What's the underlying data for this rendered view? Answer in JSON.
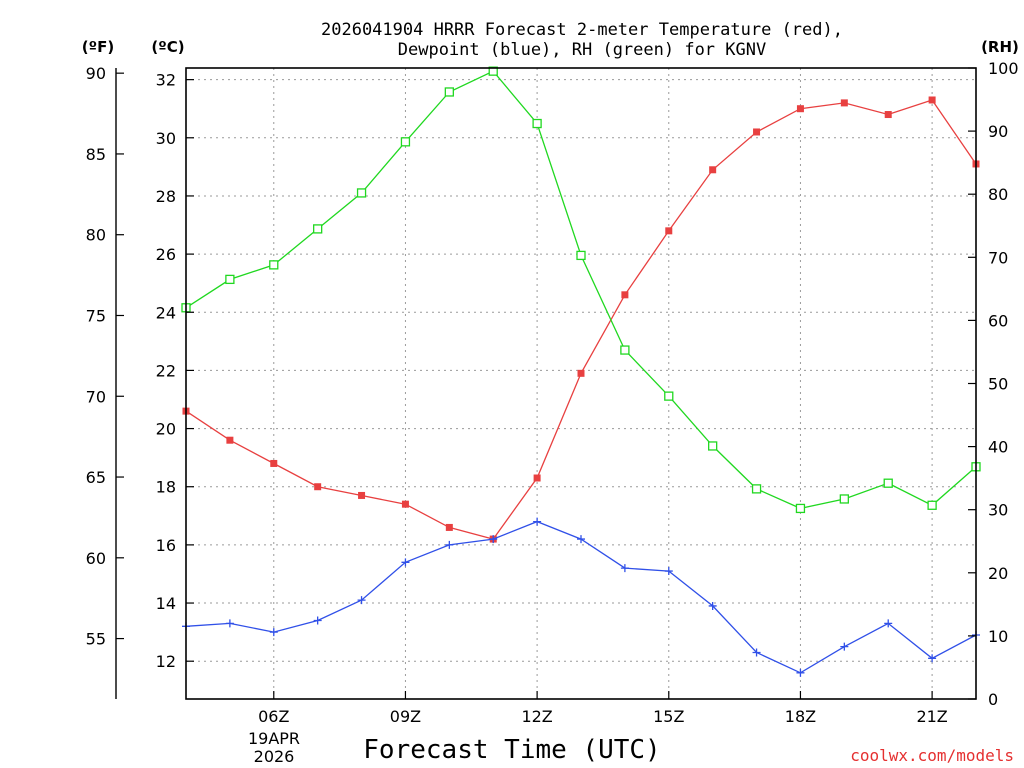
{
  "chart_data": {
    "type": "line",
    "title_line1": "2026041904 HRRR Forecast 2-meter Temperature (red),",
    "title_line2": "Dewpoint (blue), RH (green) for KGNV",
    "xlabel": "Forecast Time (UTC)",
    "watermark": "coolwx.com/models",
    "unit_f": "(ºF)",
    "unit_c": "(ºC)",
    "unit_rh": "(RH)",
    "date_line1": "19APR",
    "date_line2": "2026",
    "x_hours": [
      4,
      5,
      6,
      7,
      8,
      9,
      10,
      11,
      12,
      13,
      14,
      15,
      16,
      17,
      18,
      19,
      20,
      21,
      22
    ],
    "x_range": [
      4,
      22
    ],
    "x_ticks": [
      {
        "hour": 6,
        "label": "06Z"
      },
      {
        "hour": 9,
        "label": "09Z"
      },
      {
        "hour": 12,
        "label": "12Z"
      },
      {
        "hour": 15,
        "label": "15Z"
      },
      {
        "hour": 18,
        "label": "18Z"
      },
      {
        "hour": 21,
        "label": "21Z"
      }
    ],
    "c_range": [
      10.7,
      32.4
    ],
    "c_ticks": [
      "12",
      "14",
      "16",
      "18",
      "20",
      "22",
      "24",
      "26",
      "28",
      "30",
      "32"
    ],
    "f_range": [
      51.26,
      90.32
    ],
    "f_ticks": [
      "55",
      "60",
      "65",
      "70",
      "75",
      "80",
      "85",
      "90"
    ],
    "rh_range": [
      0,
      100
    ],
    "rh_ticks": [
      "0",
      "10",
      "20",
      "30",
      "40",
      "50",
      "60",
      "70",
      "80",
      "90",
      "100"
    ],
    "series": [
      {
        "name": "Temperature",
        "axis": "c",
        "color": "#e84040",
        "marker": "filled-square",
        "values": [
          20.6,
          19.6,
          18.8,
          18.0,
          17.7,
          17.4,
          16.6,
          16.2,
          18.3,
          21.9,
          24.6,
          26.8,
          28.9,
          30.2,
          31.0,
          31.2,
          30.8,
          31.3,
          29.1
        ]
      },
      {
        "name": "Dewpoint",
        "axis": "c",
        "color": "#3050e8",
        "marker": "plus",
        "values": [
          13.2,
          13.3,
          13.0,
          13.4,
          14.1,
          15.4,
          16.0,
          16.2,
          16.8,
          16.2,
          15.2,
          15.1,
          13.9,
          12.3,
          11.6,
          12.5,
          13.3,
          12.1,
          12.9
        ]
      },
      {
        "name": "RH",
        "axis": "rh",
        "color": "#20d820",
        "marker": "open-square",
        "values": [
          62.0,
          66.5,
          68.8,
          74.5,
          80.2,
          88.3,
          96.2,
          99.5,
          91.2,
          70.3,
          55.3,
          48.0,
          40.1,
          33.3,
          30.2,
          31.7,
          34.2,
          30.7,
          36.8
        ]
      }
    ]
  }
}
